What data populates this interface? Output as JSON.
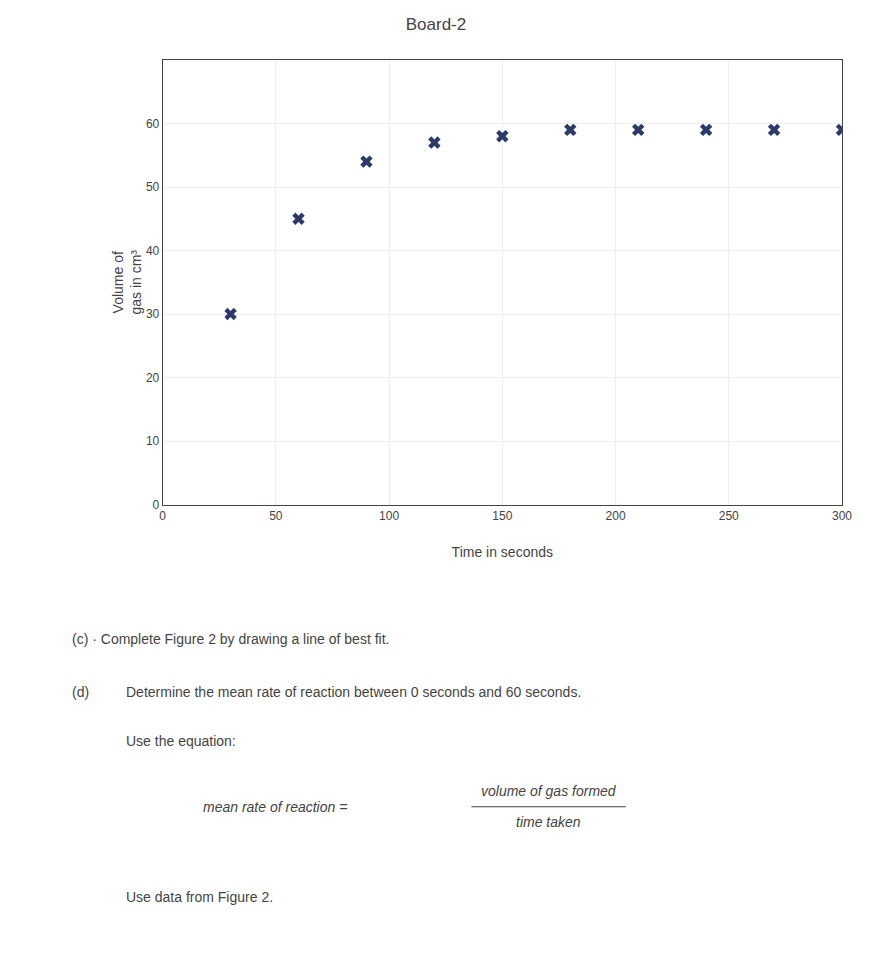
{
  "chart_data": {
    "type": "scatter",
    "title": "Board-2",
    "x_label": "Time in seconds",
    "y_label": "Volume of\ngas in cm³",
    "x": [
      30,
      60,
      90,
      120,
      150,
      180,
      210,
      240,
      270,
      300
    ],
    "values": [
      30,
      45,
      54,
      57,
      58,
      59,
      59,
      59,
      59,
      59
    ],
    "color": "#2a3a6a",
    "marker": "x",
    "xlim": [
      0,
      300
    ],
    "ylim": [
      0,
      70
    ],
    "xticks": [
      0,
      50,
      100,
      150,
      200,
      250,
      300
    ],
    "yticks": [
      0,
      10,
      20,
      30,
      40,
      50,
      60
    ],
    "grid": true,
    "annotations": [
      "(c) · Complete Figure 2 by drawing a line of best fit.",
      "(d)",
      "Determine the mean rate of reaction between 0 seconds and 60 seconds.",
      "Use the equation:",
      "mean rate of reaction = ",
      "volume of gas formed",
      "time taken",
      "Use data from Figure 2."
    ]
  }
}
